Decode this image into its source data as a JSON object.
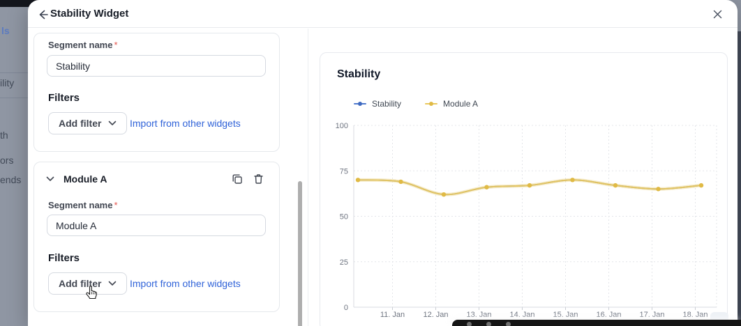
{
  "modal": {
    "title": "Stability Widget",
    "back_icon": "arrow-left",
    "close_icon": "x"
  },
  "background": {
    "sidebar_fragments": [
      "ls",
      "ility",
      "th",
      "ors",
      "ends"
    ]
  },
  "form": {
    "segments": [
      {
        "name_label": "Segment name",
        "required_mark": "*",
        "value": "Stability",
        "filters_label": "Filters",
        "add_filter": "Add filter",
        "import_link": "Import from other widgets"
      },
      {
        "header": "Module A",
        "name_label": "Segment name",
        "required_mark": "*",
        "value": "Module A",
        "filters_label": "Filters",
        "add_filter": "Add filter",
        "import_link": "Import from other widgets"
      }
    ]
  },
  "chart_data": {
    "type": "line",
    "title": "Stability",
    "series": [
      {
        "name": "Stability",
        "color": "#4e79cd",
        "dot_color": "#3f6ac0",
        "values": [
          70,
          69,
          62,
          66,
          67,
          70,
          67,
          65,
          67
        ]
      },
      {
        "name": "Module A",
        "color": "#e9c75c",
        "dot_color": "#e0ba45",
        "values": [
          70,
          69,
          62,
          66,
          67,
          70,
          67,
          65,
          67
        ]
      }
    ],
    "x_tick_labels": [
      "11. Jan",
      "12. Jan",
      "13. Jan",
      "14. Jan",
      "15. Jan",
      "16. Jan",
      "17. Jan",
      "18. Jan"
    ],
    "y_ticks": [
      0,
      25,
      50,
      75,
      100
    ],
    "ylim": [
      0,
      100
    ],
    "grid": "dashed",
    "legend_position": "top-left"
  },
  "colors": {
    "link": "#2f62d8",
    "required": "#e5534b",
    "series_blue": "#4e79cd",
    "series_yellow": "#e9c75c"
  }
}
